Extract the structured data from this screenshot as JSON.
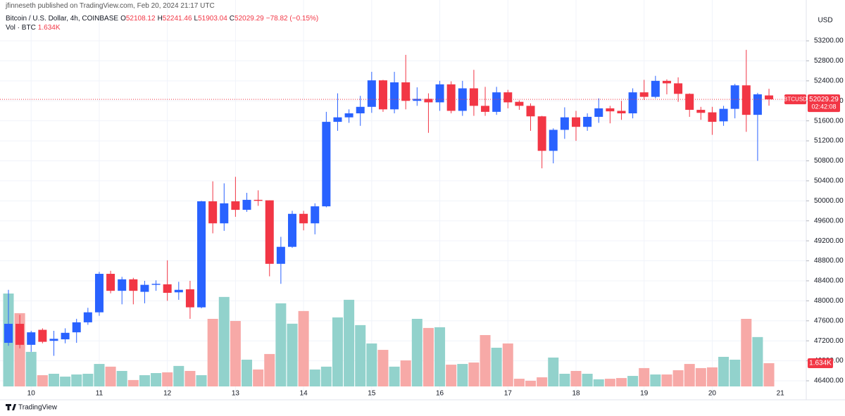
{
  "chart_data": {
    "type": "candlestick",
    "publisher": "jfinneseth published on TradingView.com, Feb 20, 2024 21:17 UTC",
    "title": "Bitcoin / U.S. Dollar, 4h, COINBASE",
    "legend_letters": {
      "open": "O",
      "high": "H",
      "low": "L",
      "close": "C"
    },
    "change_label": "−78.82 (−0.15%)",
    "volume_name": "Vol · BTC",
    "volume_label": "1.634K",
    "symbol": "BTCUSD",
    "countdown": "02:42:08",
    "currency": "USD",
    "brand": "TradingView",
    "categories": [
      null,
      null,
      "10",
      null,
      null,
      null,
      null,
      null,
      "11",
      null,
      null,
      null,
      null,
      null,
      "12",
      null,
      null,
      null,
      null,
      null,
      "13",
      null,
      null,
      null,
      null,
      null,
      "14",
      null,
      null,
      null,
      null,
      null,
      "15",
      null,
      null,
      null,
      null,
      null,
      "16",
      null,
      null,
      null,
      null,
      null,
      "17",
      null,
      null,
      null,
      null,
      null,
      "18",
      null,
      null,
      null,
      null,
      null,
      "19",
      null,
      null,
      null,
      null,
      null,
      "20",
      null,
      null,
      null,
      null,
      null
    ],
    "categories_after": [
      "21"
    ],
    "open": [
      47160,
      47540,
      47120,
      47420,
      47200,
      47230,
      47370,
      47570,
      47770,
      48540,
      48200,
      48430,
      48180,
      48320,
      48330,
      48170,
      48230,
      47870,
      49990,
      49550,
      49990,
      49820,
      50020,
      50010,
      48740,
      49080,
      49740,
      49550,
      49890,
      51580,
      51670,
      51750,
      51880,
      52410,
      51830,
      52370,
      52000,
      52040,
      51970,
      52330,
      51800,
      52250,
      51900,
      51780,
      52170,
      51980,
      51900,
      51690,
      51000,
      51420,
      51670,
      51480,
      51680,
      51850,
      51800,
      51750,
      52170,
      52080,
      52400,
      52350,
      52140,
      51820,
      51770,
      51590,
      51840,
      52310,
      51720,
      52108.12
    ],
    "high": [
      48220,
      47720,
      47400,
      47450,
      47400,
      47450,
      47640,
      47860,
      48580,
      48600,
      48480,
      48460,
      48400,
      48410,
      48810,
      48380,
      48400,
      50000,
      50390,
      50350,
      50480,
      50160,
      50210,
      50010,
      49280,
      49800,
      49800,
      49950,
      51780,
      52150,
      51830,
      52100,
      52580,
      52420,
      52580,
      52920,
      52270,
      52150,
      52400,
      52390,
      52400,
      52620,
      52280,
      52280,
      52220,
      52010,
      51950,
      51700,
      51450,
      51870,
      51800,
      51750,
      52050,
      51900,
      52000,
      52250,
      52420,
      52500,
      52430,
      52470,
      52150,
      51880,
      51880,
      51900,
      52340,
      53020,
      52160,
      52241.46
    ],
    "low": [
      47100,
      47050,
      46980,
      47150,
      46900,
      47150,
      47160,
      47520,
      47700,
      48150,
      47930,
      47930,
      47950,
      48200,
      48000,
      48020,
      47640,
      47850,
      49350,
      49400,
      49680,
      49780,
      49900,
      48490,
      48340,
      49060,
      49410,
      49330,
      49870,
      51400,
      51560,
      51500,
      51760,
      51780,
      51750,
      51830,
      51900,
      51360,
      51800,
      51750,
      51700,
      51700,
      51700,
      51720,
      51850,
      51820,
      51400,
      50650,
      50750,
      51240,
      51200,
      51400,
      51560,
      51550,
      51620,
      51650,
      52020,
      52050,
      52130,
      51980,
      51680,
      51620,
      51320,
      51500,
      51650,
      51380,
      50800,
      51903.04
    ],
    "close": [
      47540,
      47120,
      47370,
      47180,
      47240,
      47360,
      47570,
      47770,
      48540,
      48200,
      48430,
      48200,
      48320,
      48340,
      48160,
      48220,
      47870,
      49990,
      49550,
      49950,
      49820,
      50020,
      50000,
      48740,
      49080,
      49740,
      49550,
      49890,
      51580,
      51670,
      51750,
      51880,
      52410,
      51830,
      52370,
      52000,
      52040,
      51970,
      52330,
      51800,
      52250,
      51900,
      51780,
      52170,
      51970,
      51900,
      51690,
      51000,
      51420,
      51670,
      51480,
      51680,
      51850,
      51790,
      51750,
      52170,
      52080,
      52400,
      52350,
      52140,
      51820,
      51760,
      51580,
      51840,
      52310,
      51720,
      52130,
      52029.29
    ],
    "volume": [
      6530,
      5150,
      2430,
      790,
      890,
      690,
      840,
      890,
      1580,
      1390,
      1090,
      450,
      790,
      940,
      990,
      1440,
      1090,
      790,
      4750,
      6290,
      4600,
      1880,
      1190,
      2280,
      5840,
      4410,
      5300,
      1190,
      1390,
      4850,
      6090,
      4310,
      3020,
      2570,
      1390,
      1830,
      4750,
      4110,
      4160,
      1530,
      1580,
      1680,
      3610,
      2720,
      3020,
      540,
      400,
      640,
      2030,
      890,
      1090,
      890,
      500,
      540,
      590,
      740,
      1290,
      840,
      840,
      1140,
      1580,
      1290,
      1340,
      2080,
      1880,
      4750,
      3470,
      1634
    ],
    "ylim": [
      46020,
      54017
    ],
    "yticks": [
      {
        "value": 46400,
        "label": "46400.00"
      },
      {
        "value": 46800,
        "label": "46800.00"
      },
      {
        "value": 47200,
        "label": "47200.00"
      },
      {
        "value": 47600,
        "label": "47600.00"
      },
      {
        "value": 48000,
        "label": "48000.00"
      },
      {
        "value": 48400,
        "label": "48400.00"
      },
      {
        "value": 48800,
        "label": "48800.00"
      },
      {
        "value": 49200,
        "label": "49200.00"
      },
      {
        "value": 49600,
        "label": "49600.00"
      },
      {
        "value": 50000,
        "label": "50000.00"
      },
      {
        "value": 50400,
        "label": "50400.00"
      },
      {
        "value": 50800,
        "label": "50800.00"
      },
      {
        "value": 51200,
        "label": "51200.00"
      },
      {
        "value": 51600,
        "label": "51600.00"
      },
      {
        "value": 52000,
        "label": "52000.00"
      },
      {
        "value": 52400,
        "label": "52400.00"
      },
      {
        "value": 52800,
        "label": "52800.00"
      },
      {
        "value": 53200,
        "label": "53200.00"
      }
    ],
    "grid": true,
    "up_color": "#2962ff",
    "down_color": "#f23645",
    "volume_up_color": "#92d2cc",
    "volume_down_color": "#f7a9a7"
  }
}
